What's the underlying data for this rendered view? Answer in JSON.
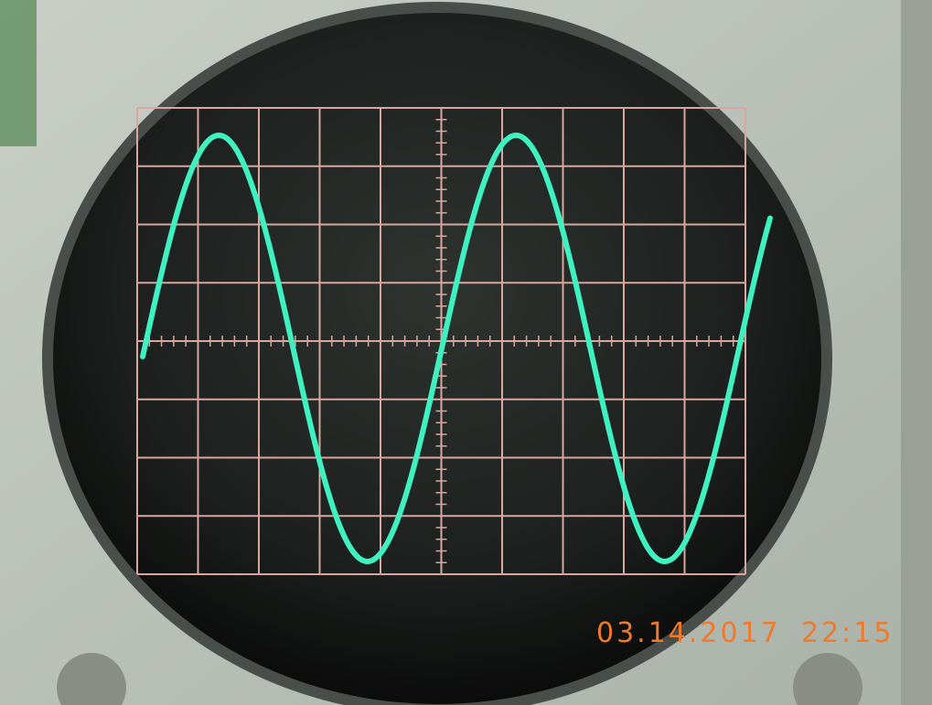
{
  "timestamp": {
    "date": "03.14.2017",
    "time": "22:15"
  }
}
